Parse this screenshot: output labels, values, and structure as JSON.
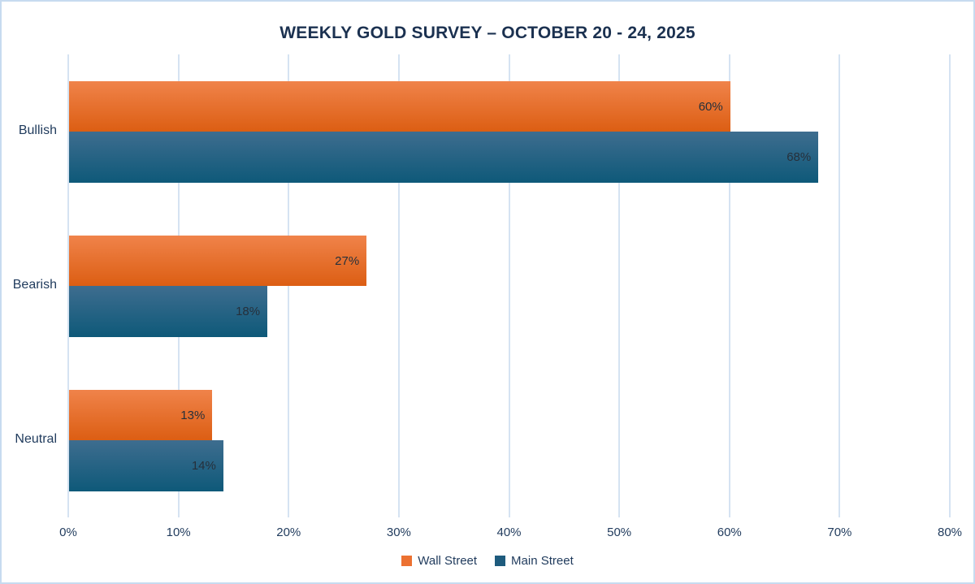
{
  "chart": {
    "title": "WEEKLY GOLD SURVEY – OCTOBER 20 - 24, 2025"
  },
  "chart_data": {
    "type": "bar",
    "orientation": "horizontal",
    "title": "WEEKLY GOLD SURVEY – OCTOBER 20 - 24, 2025",
    "categories": [
      "Bullish",
      "Bearish",
      "Neutral"
    ],
    "series": [
      {
        "name": "Wall Street",
        "values": [
          60,
          27,
          13
        ],
        "data_labels": [
          "60%",
          "27%",
          "13%"
        ],
        "color_top": "#f0834a",
        "color_bottom": "#dc5e13",
        "legend_color": "#ec7131"
      },
      {
        "name": "Main Street",
        "values": [
          68,
          18,
          14
        ],
        "data_labels": [
          "68%",
          "18%",
          "14%"
        ],
        "color_top": "#3e6d8f",
        "color_bottom": "#0e5979",
        "legend_color": "#1e5b7d"
      }
    ],
    "value_suffix": "%",
    "xlim": [
      0,
      80
    ],
    "x_tick_step": 10,
    "x_tick_labels": [
      "0%",
      "10%",
      "20%",
      "30%",
      "40%",
      "50%",
      "60%",
      "70%",
      "80%"
    ],
    "grid": true,
    "legend_position": "bottom",
    "colors": {
      "grid": "#d5e3f2",
      "chart_border": "#c7dbf0",
      "text_navy": "#1f3a5c",
      "data_label": "#26303b",
      "title": "#1b3150"
    }
  }
}
